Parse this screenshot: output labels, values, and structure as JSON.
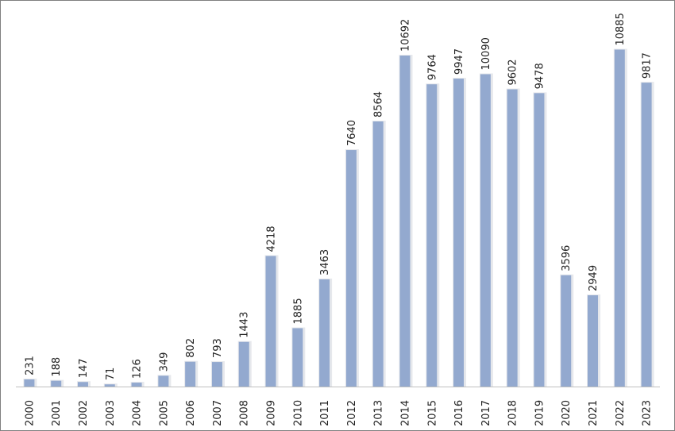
{
  "chart_data": {
    "type": "bar",
    "categories": [
      "2000",
      "2001",
      "2002",
      "2003",
      "2004",
      "2005",
      "2006",
      "2007",
      "2008",
      "2009",
      "2010",
      "2011",
      "2012",
      "2013",
      "2014",
      "2015",
      "2016",
      "2017",
      "2018",
      "2019",
      "2020",
      "2021",
      "2022",
      "2023"
    ],
    "values": [
      231,
      188,
      147,
      71,
      126,
      349,
      802,
      793,
      1443,
      4218,
      1885,
      3463,
      7640,
      8564,
      10692,
      9764,
      9947,
      10090,
      9602,
      9478,
      3596,
      2949,
      10885,
      9817
    ],
    "title": "",
    "xlabel": "",
    "ylabel": "",
    "ylim": [
      0,
      11000
    ],
    "grid": false,
    "legend": "none",
    "data_labels": true,
    "tick_label_orientation": "vertical",
    "colors": {
      "bar": "#93a9cf",
      "axis": "#bfbfbf",
      "frame": "#7f7f7f",
      "text": "#222222"
    }
  }
}
